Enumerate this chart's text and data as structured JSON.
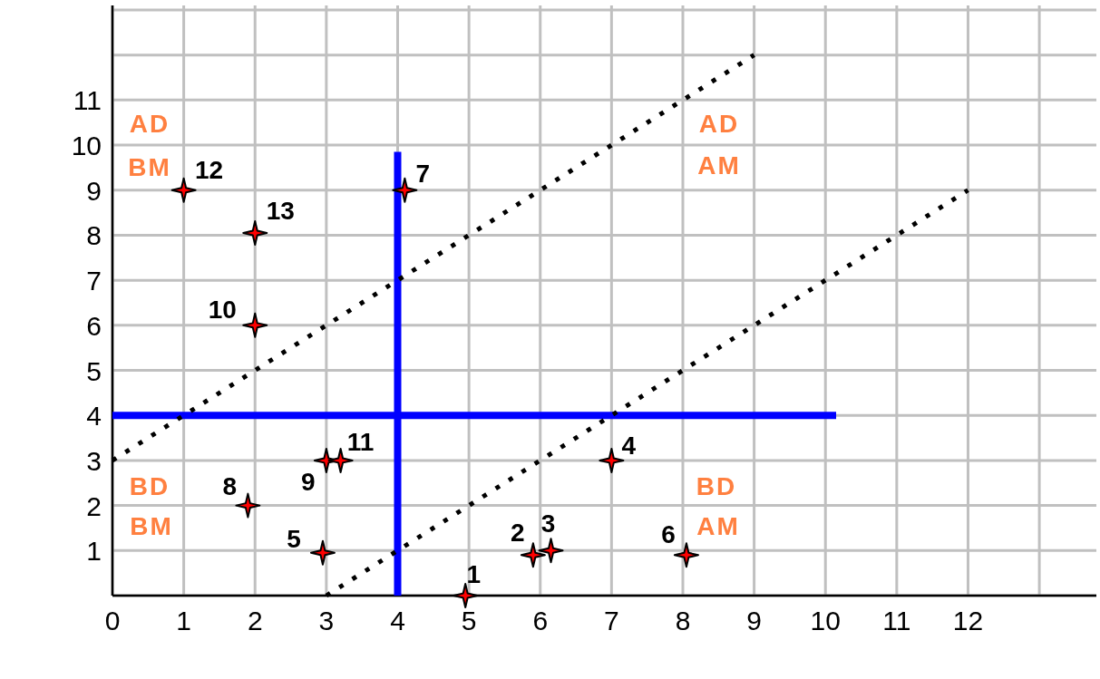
{
  "chart_data": {
    "type": "scatter",
    "series": [
      {
        "color": "#ff0000",
        "x": [
          4.95,
          5.9,
          6.15,
          7,
          2.95,
          8.05,
          4.1,
          1.9,
          3,
          2,
          3.2,
          1,
          2
        ],
        "values": [
          0,
          0.9,
          1,
          3,
          0.95,
          0.9,
          9,
          2,
          3,
          6,
          3,
          9,
          8.05
        ]
      },
      {
        "type": "line",
        "color": "#0000ff",
        "marker": "none",
        "line_style": "solid",
        "x": [
          4,
          4
        ],
        "values": [
          0,
          9.85
        ]
      },
      {
        "type": "line",
        "color": "#0000ff",
        "marker": "none",
        "line_style": "solid",
        "x": [
          0,
          10.15
        ],
        "values": [
          4,
          4
        ]
      },
      {
        "type": "line",
        "color": "#000000",
        "marker": "none",
        "line_style": "dotted",
        "x": [
          0,
          9
        ],
        "values": [
          3,
          12
        ]
      },
      {
        "type": "line",
        "color": "#000000",
        "marker": "none",
        "line_style": "dotted",
        "x": [
          3,
          12
        ],
        "values": [
          0,
          9
        ]
      }
    ],
    "xlim": [
      0,
      13.8
    ],
    "ylim": [
      0,
      13.1
    ],
    "xticks": [
      0,
      1,
      2,
      3,
      4,
      5,
      6,
      7,
      8,
      9,
      10,
      11,
      12,
      {
        "value": 13,
        "label": null
      }
    ],
    "yticks": [
      {
        "value": 0,
        "label": null
      },
      1,
      2,
      3,
      4,
      5,
      6,
      7,
      8,
      9,
      10,
      11,
      {
        "value": 12,
        "label": null
      },
      {
        "value": 13,
        "label": null
      }
    ],
    "grid": true,
    "marker": "star",
    "annotations": [
      {
        "text": "1",
        "x": 4.95,
        "y": 0
      },
      {
        "text": "2",
        "x": 5.9,
        "y": 0.9
      },
      {
        "text": "3",
        "x": 6.15,
        "y": 1
      },
      {
        "text": "4",
        "x": 7,
        "y": 3
      },
      {
        "text": "5",
        "x": 2.95,
        "y": 0.95
      },
      {
        "text": "6",
        "x": 8.05,
        "y": 0.9
      },
      {
        "text": "7",
        "x": 4.1,
        "y": 9
      },
      {
        "text": "8",
        "x": 1.9,
        "y": 2
      },
      {
        "text": "9",
        "x": 3,
        "y": 3
      },
      {
        "text": "10",
        "x": 2,
        "y": 6
      },
      {
        "text": "11",
        "x": 3.2,
        "y": 3
      },
      {
        "text": "12",
        "x": 1,
        "y": 9
      },
      {
        "text": "13",
        "x": 2,
        "y": 8.05
      },
      "AD",
      "BM",
      "AD",
      "AM",
      "BD",
      "BM",
      "BD",
      "AM"
    ]
  }
}
